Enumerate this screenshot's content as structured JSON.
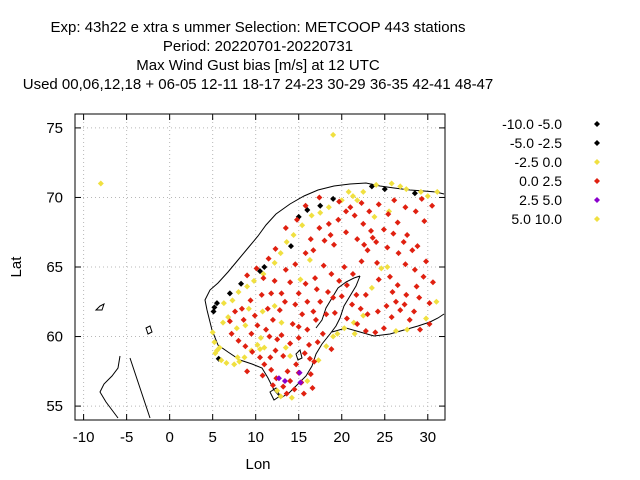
{
  "chart_data": {
    "type": "scatter",
    "title_lines": [
      "Exp: 43h22 e xtra s ummer   Selection: METCOOP    443 stations",
      "Period: 20220701-20220731",
      "Max Wind Gust bias [m/s] at  12 UTC",
      "Used  00,06,12,18  + 06-05 12-11 18-17 24-23 30-29 36-35 42-41 48-47"
    ],
    "xlabel": "Lon",
    "ylabel": "Lat",
    "xlim": [
      -11,
      32
    ],
    "ylim": [
      54,
      76
    ],
    "xticks": [
      -10,
      -5,
      0,
      5,
      10,
      15,
      20,
      25,
      30
    ],
    "yticks": [
      55,
      60,
      65,
      70,
      75
    ],
    "grid": true,
    "legend_position": "right",
    "legend": [
      {
        "label": "-10.0 -5.0",
        "color": "#000000"
      },
      {
        "label": "-5.0 -2.5",
        "color": "#000000"
      },
      {
        "label": "-2.5 0.0",
        "color": "#f0e040"
      },
      {
        "label": "0.0 2.5",
        "color": "#e02010"
      },
      {
        "label": "2.5 5.0",
        "color": "#8a00cc"
      },
      {
        "label": "5.0 10.0",
        "color": "#f0e040"
      }
    ],
    "series": [
      {
        "color": "#000000",
        "points": [
          [
            5.2,
            62.1
          ],
          [
            5.5,
            62.4
          ],
          [
            5.7,
            58.4
          ],
          [
            7.0,
            63.1
          ],
          [
            8.3,
            63.8
          ],
          [
            10.5,
            64.7
          ],
          [
            11.0,
            65.0
          ],
          [
            14.1,
            66.5
          ],
          [
            15.0,
            68.6
          ],
          [
            16.0,
            69.1
          ],
          [
            17.5,
            69.4
          ],
          [
            19.0,
            69.9
          ],
          [
            23.5,
            70.8
          ],
          [
            25.0,
            70.6
          ],
          [
            28.5,
            70.3
          ],
          [
            5.1,
            61.8
          ]
        ]
      },
      {
        "color": "#f0e040",
        "points": [
          [
            -8.0,
            71.0
          ],
          [
            19.0,
            74.5
          ],
          [
            5.0,
            60.3
          ],
          [
            5.2,
            59.6
          ],
          [
            5.5,
            59.0
          ],
          [
            5.3,
            58.8
          ],
          [
            5.8,
            59.2
          ],
          [
            6.0,
            58.3
          ],
          [
            6.6,
            58.1
          ],
          [
            7.5,
            58.0
          ],
          [
            8.1,
            58.2
          ],
          [
            8.7,
            58.5
          ],
          [
            9.5,
            59.0
          ],
          [
            10.2,
            59.4
          ],
          [
            10.6,
            59.9
          ],
          [
            11.0,
            59.2
          ],
          [
            6.2,
            61.0
          ],
          [
            6.8,
            61.4
          ],
          [
            7.3,
            62.6
          ],
          [
            8.0,
            63.2
          ],
          [
            9.0,
            63.6
          ],
          [
            9.8,
            64.0
          ],
          [
            10.9,
            64.5
          ],
          [
            12.2,
            65.3
          ],
          [
            12.9,
            66.0
          ],
          [
            13.6,
            66.8
          ],
          [
            14.4,
            67.3
          ],
          [
            15.4,
            68.0
          ],
          [
            16.5,
            68.7
          ],
          [
            17.5,
            68.9
          ],
          [
            18.5,
            69.3
          ],
          [
            20.0,
            69.8
          ],
          [
            21.3,
            70.1
          ],
          [
            22.5,
            70.4
          ],
          [
            24.0,
            70.9
          ],
          [
            25.8,
            71.0
          ],
          [
            26.8,
            70.8
          ],
          [
            27.5,
            70.6
          ],
          [
            29.2,
            70.4
          ],
          [
            30.0,
            70.1
          ],
          [
            31.1,
            70.4
          ],
          [
            12.5,
            56.1
          ],
          [
            12.9,
            55.7
          ],
          [
            14.2,
            55.6
          ],
          [
            16.0,
            56.8
          ],
          [
            17.3,
            58.3
          ],
          [
            18.2,
            59.3
          ],
          [
            19.0,
            60.0
          ],
          [
            20.3,
            60.6
          ],
          [
            21.4,
            61.0
          ],
          [
            21.5,
            60.2
          ],
          [
            22.5,
            61.5
          ],
          [
            23.5,
            63.5
          ],
          [
            24.6,
            64.9
          ],
          [
            25.3,
            65.0
          ],
          [
            26.3,
            60.4
          ],
          [
            27.6,
            60.5
          ],
          [
            29.8,
            61.3
          ],
          [
            31.0,
            62.5
          ],
          [
            19.5,
            60.2
          ],
          [
            14.0,
            58.6
          ],
          [
            13.5,
            59.2
          ],
          [
            13.0,
            61.0
          ],
          [
            12.2,
            62.2
          ],
          [
            8.8,
            60.8
          ],
          [
            10.8,
            61.8
          ],
          [
            7.8,
            60.6
          ],
          [
            6.3,
            62.4
          ],
          [
            9.2,
            62.0
          ],
          [
            20.8,
            70.4
          ],
          [
            21.8,
            69.8
          ],
          [
            16.3,
            65.5
          ],
          [
            15.2,
            64.1
          ],
          [
            10.5,
            59.1
          ],
          [
            7.9,
            58.5
          ],
          [
            25.5,
            69.0
          ],
          [
            23.8,
            68.6
          ]
        ]
      },
      {
        "color": "#e02010",
        "points": [
          [
            9.5,
            60.2
          ],
          [
            10.2,
            60.8
          ],
          [
            11.2,
            60.5
          ],
          [
            12.0,
            61.2
          ],
          [
            13.0,
            60.1
          ],
          [
            14.0,
            59.5
          ],
          [
            15.0,
            59.9
          ],
          [
            16.0,
            60.5
          ],
          [
            17.0,
            61.2
          ],
          [
            16.0,
            62.5
          ],
          [
            15.0,
            63.1
          ],
          [
            14.0,
            63.9
          ],
          [
            13.5,
            64.8
          ],
          [
            14.6,
            65.2
          ],
          [
            15.8,
            66.0
          ],
          [
            16.4,
            67.0
          ],
          [
            17.4,
            67.8
          ],
          [
            18.5,
            68.1
          ],
          [
            19.6,
            68.4
          ],
          [
            20.5,
            69.0
          ],
          [
            21.5,
            68.7
          ],
          [
            22.5,
            68.1
          ],
          [
            23.4,
            67.6
          ],
          [
            24.0,
            66.8
          ],
          [
            25.3,
            66.4
          ],
          [
            26.6,
            66.0
          ],
          [
            27.4,
            65.2
          ],
          [
            28.5,
            64.8
          ],
          [
            29.5,
            64.3
          ],
          [
            28.7,
            63.6
          ],
          [
            27.5,
            63.0
          ],
          [
            26.3,
            62.5
          ],
          [
            25.2,
            62.2
          ],
          [
            24.2,
            61.8
          ],
          [
            23.0,
            61.6
          ],
          [
            22.2,
            62.0
          ],
          [
            21.7,
            63.0
          ],
          [
            20.6,
            63.7
          ],
          [
            19.7,
            64.0
          ],
          [
            18.8,
            64.5
          ],
          [
            17.9,
            65.1
          ],
          [
            18.4,
            63.2
          ],
          [
            17.5,
            62.5
          ],
          [
            18.2,
            61.6
          ],
          [
            19.2,
            61.7
          ],
          [
            20.0,
            62.9
          ],
          [
            21.3,
            64.5
          ],
          [
            22.3,
            65.4
          ],
          [
            23.0,
            66.2
          ],
          [
            24.1,
            65.3
          ],
          [
            25.6,
            64.3
          ],
          [
            26.5,
            63.7
          ],
          [
            27.3,
            62.3
          ],
          [
            28.4,
            61.8
          ],
          [
            29.0,
            62.8
          ],
          [
            30.2,
            62.4
          ],
          [
            30.6,
            63.9
          ],
          [
            29.8,
            65.4
          ],
          [
            28.8,
            66.5
          ],
          [
            27.6,
            67.3
          ],
          [
            26.5,
            68.2
          ],
          [
            25.4,
            68.8
          ],
          [
            24.3,
            69.5
          ],
          [
            23.2,
            69.0
          ],
          [
            22.3,
            69.6
          ],
          [
            21.0,
            69.3
          ],
          [
            19.7,
            69.7
          ],
          [
            17.4,
            70.0
          ],
          [
            15.8,
            69.4
          ],
          [
            14.8,
            68.4
          ],
          [
            13.5,
            67.8
          ],
          [
            12.3,
            66.3
          ],
          [
            11.5,
            65.6
          ],
          [
            10.9,
            64.2
          ],
          [
            12.2,
            64.0
          ],
          [
            11.8,
            63.1
          ],
          [
            10.7,
            63.0
          ],
          [
            9.4,
            62.6
          ],
          [
            8.4,
            62.0
          ],
          [
            7.6,
            61.8
          ],
          [
            7.0,
            61.1
          ],
          [
            7.2,
            60.2
          ],
          [
            8.0,
            59.7
          ],
          [
            8.8,
            59.3
          ],
          [
            9.6,
            58.9
          ],
          [
            10.5,
            58.5
          ],
          [
            11.0,
            58.0
          ],
          [
            11.8,
            57.6
          ],
          [
            12.4,
            57.0
          ],
          [
            13.2,
            56.4
          ],
          [
            14.5,
            56.2
          ],
          [
            15.3,
            56.7
          ],
          [
            16.4,
            57.3
          ],
          [
            16.8,
            58.2
          ],
          [
            15.7,
            58.8
          ],
          [
            14.7,
            58.0
          ],
          [
            13.7,
            57.5
          ],
          [
            13.2,
            58.6
          ],
          [
            12.3,
            59.0
          ],
          [
            12.5,
            59.8
          ],
          [
            14.3,
            60.9
          ],
          [
            15.4,
            61.6
          ],
          [
            16.7,
            61.8
          ],
          [
            17.8,
            60.2
          ],
          [
            18.8,
            59.1
          ],
          [
            17.2,
            59.6
          ],
          [
            16.2,
            59.4
          ],
          [
            15.8,
            63.8
          ],
          [
            16.9,
            64.2
          ],
          [
            17.1,
            63.4
          ],
          [
            19.0,
            62.8
          ],
          [
            20.6,
            61.3
          ],
          [
            21.8,
            60.9
          ],
          [
            22.8,
            60.4
          ],
          [
            23.9,
            60.3
          ],
          [
            24.9,
            60.6
          ],
          [
            25.8,
            61.4
          ],
          [
            26.8,
            61.9
          ],
          [
            27.9,
            61.2
          ],
          [
            29.1,
            60.5
          ],
          [
            30.2,
            60.9
          ],
          [
            28.2,
            66.2
          ],
          [
            27.2,
            66.8
          ],
          [
            26.0,
            67.4
          ],
          [
            24.9,
            67.7
          ],
          [
            23.6,
            67.1
          ],
          [
            22.6,
            66.6
          ],
          [
            24.3,
            64.1
          ],
          [
            25.9,
            63.2
          ],
          [
            22.8,
            63.0
          ],
          [
            21.2,
            62.3
          ],
          [
            20.3,
            65.0
          ],
          [
            19.1,
            66.6
          ],
          [
            18.0,
            66.9
          ],
          [
            16.7,
            66.2
          ],
          [
            18.7,
            67.3
          ],
          [
            20.5,
            67.5
          ],
          [
            21.8,
            67.0
          ],
          [
            26.1,
            69.8
          ],
          [
            27.4,
            69.3
          ],
          [
            28.6,
            69.0
          ],
          [
            29.6,
            68.3
          ],
          [
            30.5,
            69.4
          ],
          [
            29.3,
            69.9
          ],
          [
            9.9,
            61.5
          ],
          [
            11.4,
            62.0
          ],
          [
            13.4,
            62.5
          ],
          [
            14.6,
            62.3
          ],
          [
            10.1,
            64.9
          ],
          [
            11.6,
            60.0
          ],
          [
            12.8,
            61.9
          ],
          [
            8.6,
            61.2
          ],
          [
            9.0,
            64.4
          ],
          [
            13.0,
            63.1
          ],
          [
            15.0,
            60.7
          ],
          [
            16.3,
            58.4
          ],
          [
            15.0,
            57.4
          ],
          [
            12.0,
            56.5
          ],
          [
            14.0,
            56.8
          ],
          [
            13.6,
            55.9
          ],
          [
            15.6,
            55.9
          ],
          [
            16.6,
            56.3
          ],
          [
            11.7,
            58.5
          ],
          [
            10.8,
            57.2
          ],
          [
            9.0,
            57.5
          ]
        ]
      },
      {
        "color": "#8a00cc",
        "points": [
          [
            15.1,
            57.4
          ],
          [
            12.7,
            57.0
          ],
          [
            13.4,
            56.8
          ],
          [
            15.2,
            56.7
          ]
        ]
      }
    ]
  }
}
